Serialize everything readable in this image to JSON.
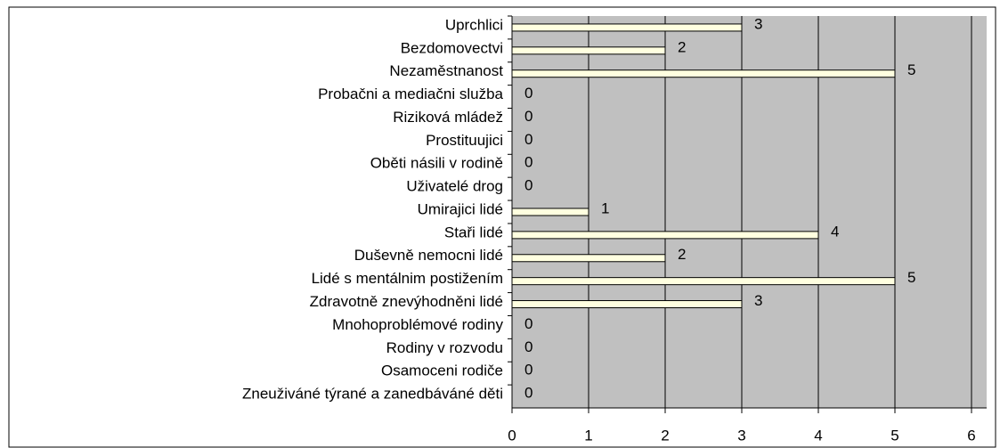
{
  "chart_data": {
    "type": "hbar",
    "categories": [
      "Uprchlici",
      "Bezdomovectvi",
      "Nezaměstnanost",
      "Probačni a mediačni služba",
      "Riziková mládež",
      "Prostituujici",
      "Oběti násili v rodině",
      "Uživatelé drog",
      "Umirajici lidé",
      "Staři lidé",
      "Duševně nemocni lidé",
      "Lidé s mentálnim postižením",
      "Zdravotně znevýhodněni lidé",
      "Mnohoproblémové rodiny",
      "Rodiny v rozvodu",
      "Osamoceni rodiče",
      "Zneuživáné týrané a zanedbáváné děti"
    ],
    "values": [
      3,
      2,
      5,
      0,
      0,
      0,
      0,
      0,
      1,
      4,
      2,
      5,
      3,
      0,
      0,
      0,
      0
    ],
    "color": "#ffffe0",
    "xlim": [
      0,
      6
    ],
    "xticks": [
      0,
      1,
      2,
      3,
      4,
      5,
      6
    ],
    "grid": true
  }
}
